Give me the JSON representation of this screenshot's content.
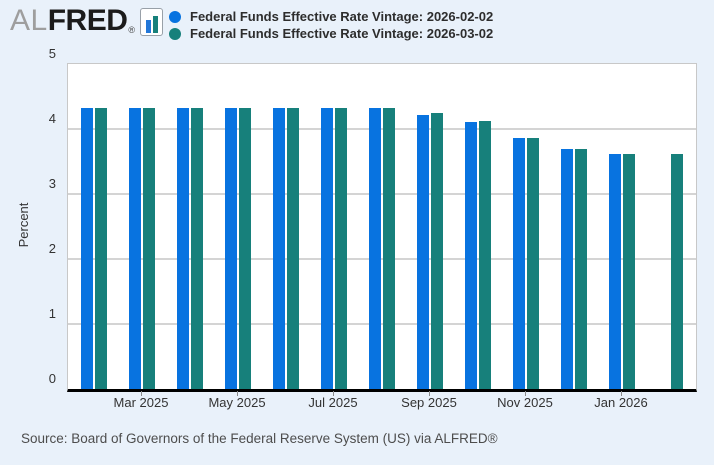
{
  "logo": {
    "prefix": "AL",
    "brand": "FRED",
    "registered": "®"
  },
  "legend": {
    "items": [
      {
        "label": "Federal Funds Effective Rate Vintage: 2026-02-02",
        "color": "#0873e0"
      },
      {
        "label": "Federal Funds Effective Rate Vintage: 2026-03-02",
        "color": "#17807b"
      }
    ]
  },
  "source": {
    "text": "Source: Board of Governors of the Federal Reserve System (US) via ALFRED®"
  },
  "chart_data": {
    "type": "bar",
    "ylabel": "Percent",
    "ylim": [
      0,
      5
    ],
    "ytick_labels": [
      "0",
      "1",
      "2",
      "3",
      "4",
      "5"
    ],
    "categories": [
      "Feb 2025",
      "Mar 2025",
      "Apr 2025",
      "May 2025",
      "Jun 2025",
      "Jul 2025",
      "Aug 2025",
      "Sep 2025",
      "Oct 2025",
      "Nov 2025",
      "Dec 2025",
      "Jan 2026",
      "Feb 2026"
    ],
    "xtick_labels": [
      "Mar 2025",
      "May 2025",
      "Jul 2025",
      "Sep 2025",
      "Nov 2025",
      "Jan 2026"
    ],
    "xtick_category_indexes": [
      1,
      3,
      5,
      7,
      9,
      11
    ],
    "series": [
      {
        "name": "Federal Funds Effective Rate Vintage: 2026-02-02",
        "color": "#0873e0",
        "values": [
          4.33,
          4.33,
          4.33,
          4.33,
          4.33,
          4.33,
          4.33,
          4.22,
          4.1,
          3.86,
          3.69,
          3.62,
          null
        ]
      },
      {
        "name": "Federal Funds Effective Rate Vintage: 2026-03-02",
        "color": "#17807b",
        "values": [
          4.33,
          4.33,
          4.33,
          4.33,
          4.33,
          4.33,
          4.33,
          4.24,
          4.12,
          3.86,
          3.69,
          3.62,
          3.62
        ]
      }
    ],
    "grid": "horizontal",
    "legend_position": "top-left"
  }
}
